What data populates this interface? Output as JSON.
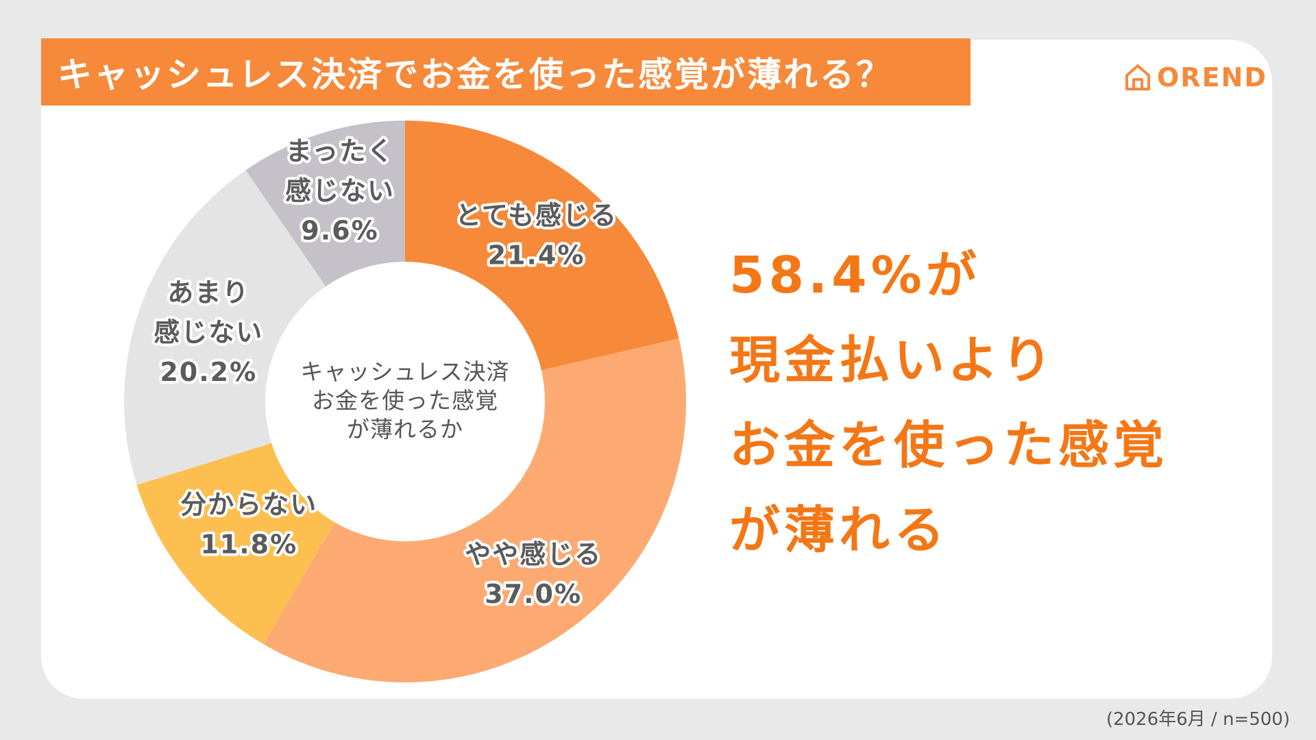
{
  "header": {
    "title": "キャッシュレス決済でお金を使った感覚が薄れる？"
  },
  "logo": {
    "text": "OREND",
    "icon": "house-logo-icon",
    "color": "#f7893a"
  },
  "chart_data": {
    "type": "pie",
    "donut": true,
    "center_label": [
      "キャッシュレス決済",
      "お金を使った感覚",
      "が薄れるか"
    ],
    "slices": [
      {
        "label": [
          "とても感じる"
        ],
        "value": 21.4,
        "value_text": "21.4%",
        "color": "#f7893a"
      },
      {
        "label": [
          "やや感じる"
        ],
        "value": 37.0,
        "value_text": "37.0%",
        "color": "#fcaa72"
      },
      {
        "label": [
          "分からない"
        ],
        "value": 11.8,
        "value_text": "11.8%",
        "color": "#fdbf4f"
      },
      {
        "label": [
          "あまり",
          "感じない"
        ],
        "value": 20.2,
        "value_text": "20.2%",
        "color": "#e5e4e4"
      },
      {
        "label": [
          "まったく",
          "感じない"
        ],
        "value": 9.6,
        "value_text": "9.6%",
        "color": "#c4c2c8"
      }
    ]
  },
  "headline": {
    "lines": [
      "58.4%が",
      "現金払いより",
      "お金を使った感覚",
      "が薄れる"
    ],
    "color": "#f47716"
  },
  "footnote": "(2026年6月 / n=500)"
}
